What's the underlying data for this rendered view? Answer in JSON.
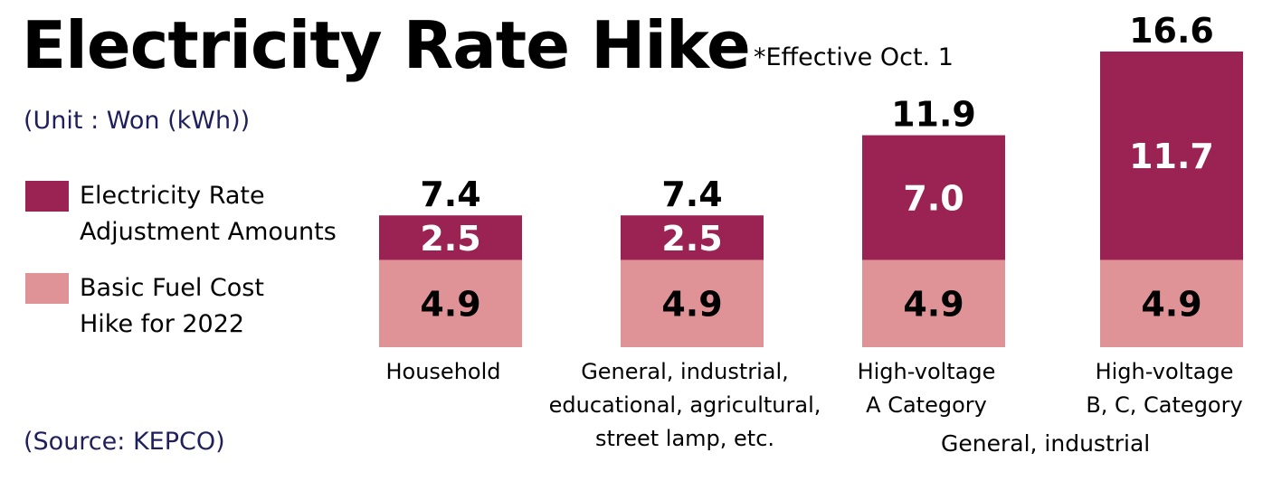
{
  "title": "Electricity Rate Hike",
  "note": "*Effective Oct. 1",
  "unit": "(Unit : Won (kWh))",
  "source": "(Source: KEPCO)",
  "group_label": "General, industrial",
  "colors": {
    "adjustment": "#9b2353",
    "fuel": "#df9396",
    "unit_text": "#1f1f5c"
  },
  "chart_data": {
    "type": "bar",
    "stacked": true,
    "categories": [
      [
        "Household"
      ],
      [
        "General, industrial,",
        "educational, agricultural,",
        "street lamp, etc."
      ],
      [
        "High-voltage",
        "A Category"
      ],
      [
        "High-voltage",
        "B, C, Category"
      ]
    ],
    "series": [
      {
        "name": "Basic Fuel Cost Hike for 2022",
        "legend_lines": [
          "Basic Fuel Cost",
          "Hike for 2022"
        ],
        "values": [
          4.9,
          4.9,
          4.9,
          4.9
        ]
      },
      {
        "name": "Electricity Rate Adjustment Amounts",
        "legend_lines": [
          "Electricity Rate",
          "Adjustment Amounts"
        ],
        "values": [
          2.5,
          2.5,
          7.0,
          11.7
        ]
      }
    ],
    "totals": [
      7.4,
      7.4,
      11.9,
      16.6
    ],
    "ylim": [
      0,
      16.6
    ],
    "grid": false,
    "legend_position": "left"
  }
}
